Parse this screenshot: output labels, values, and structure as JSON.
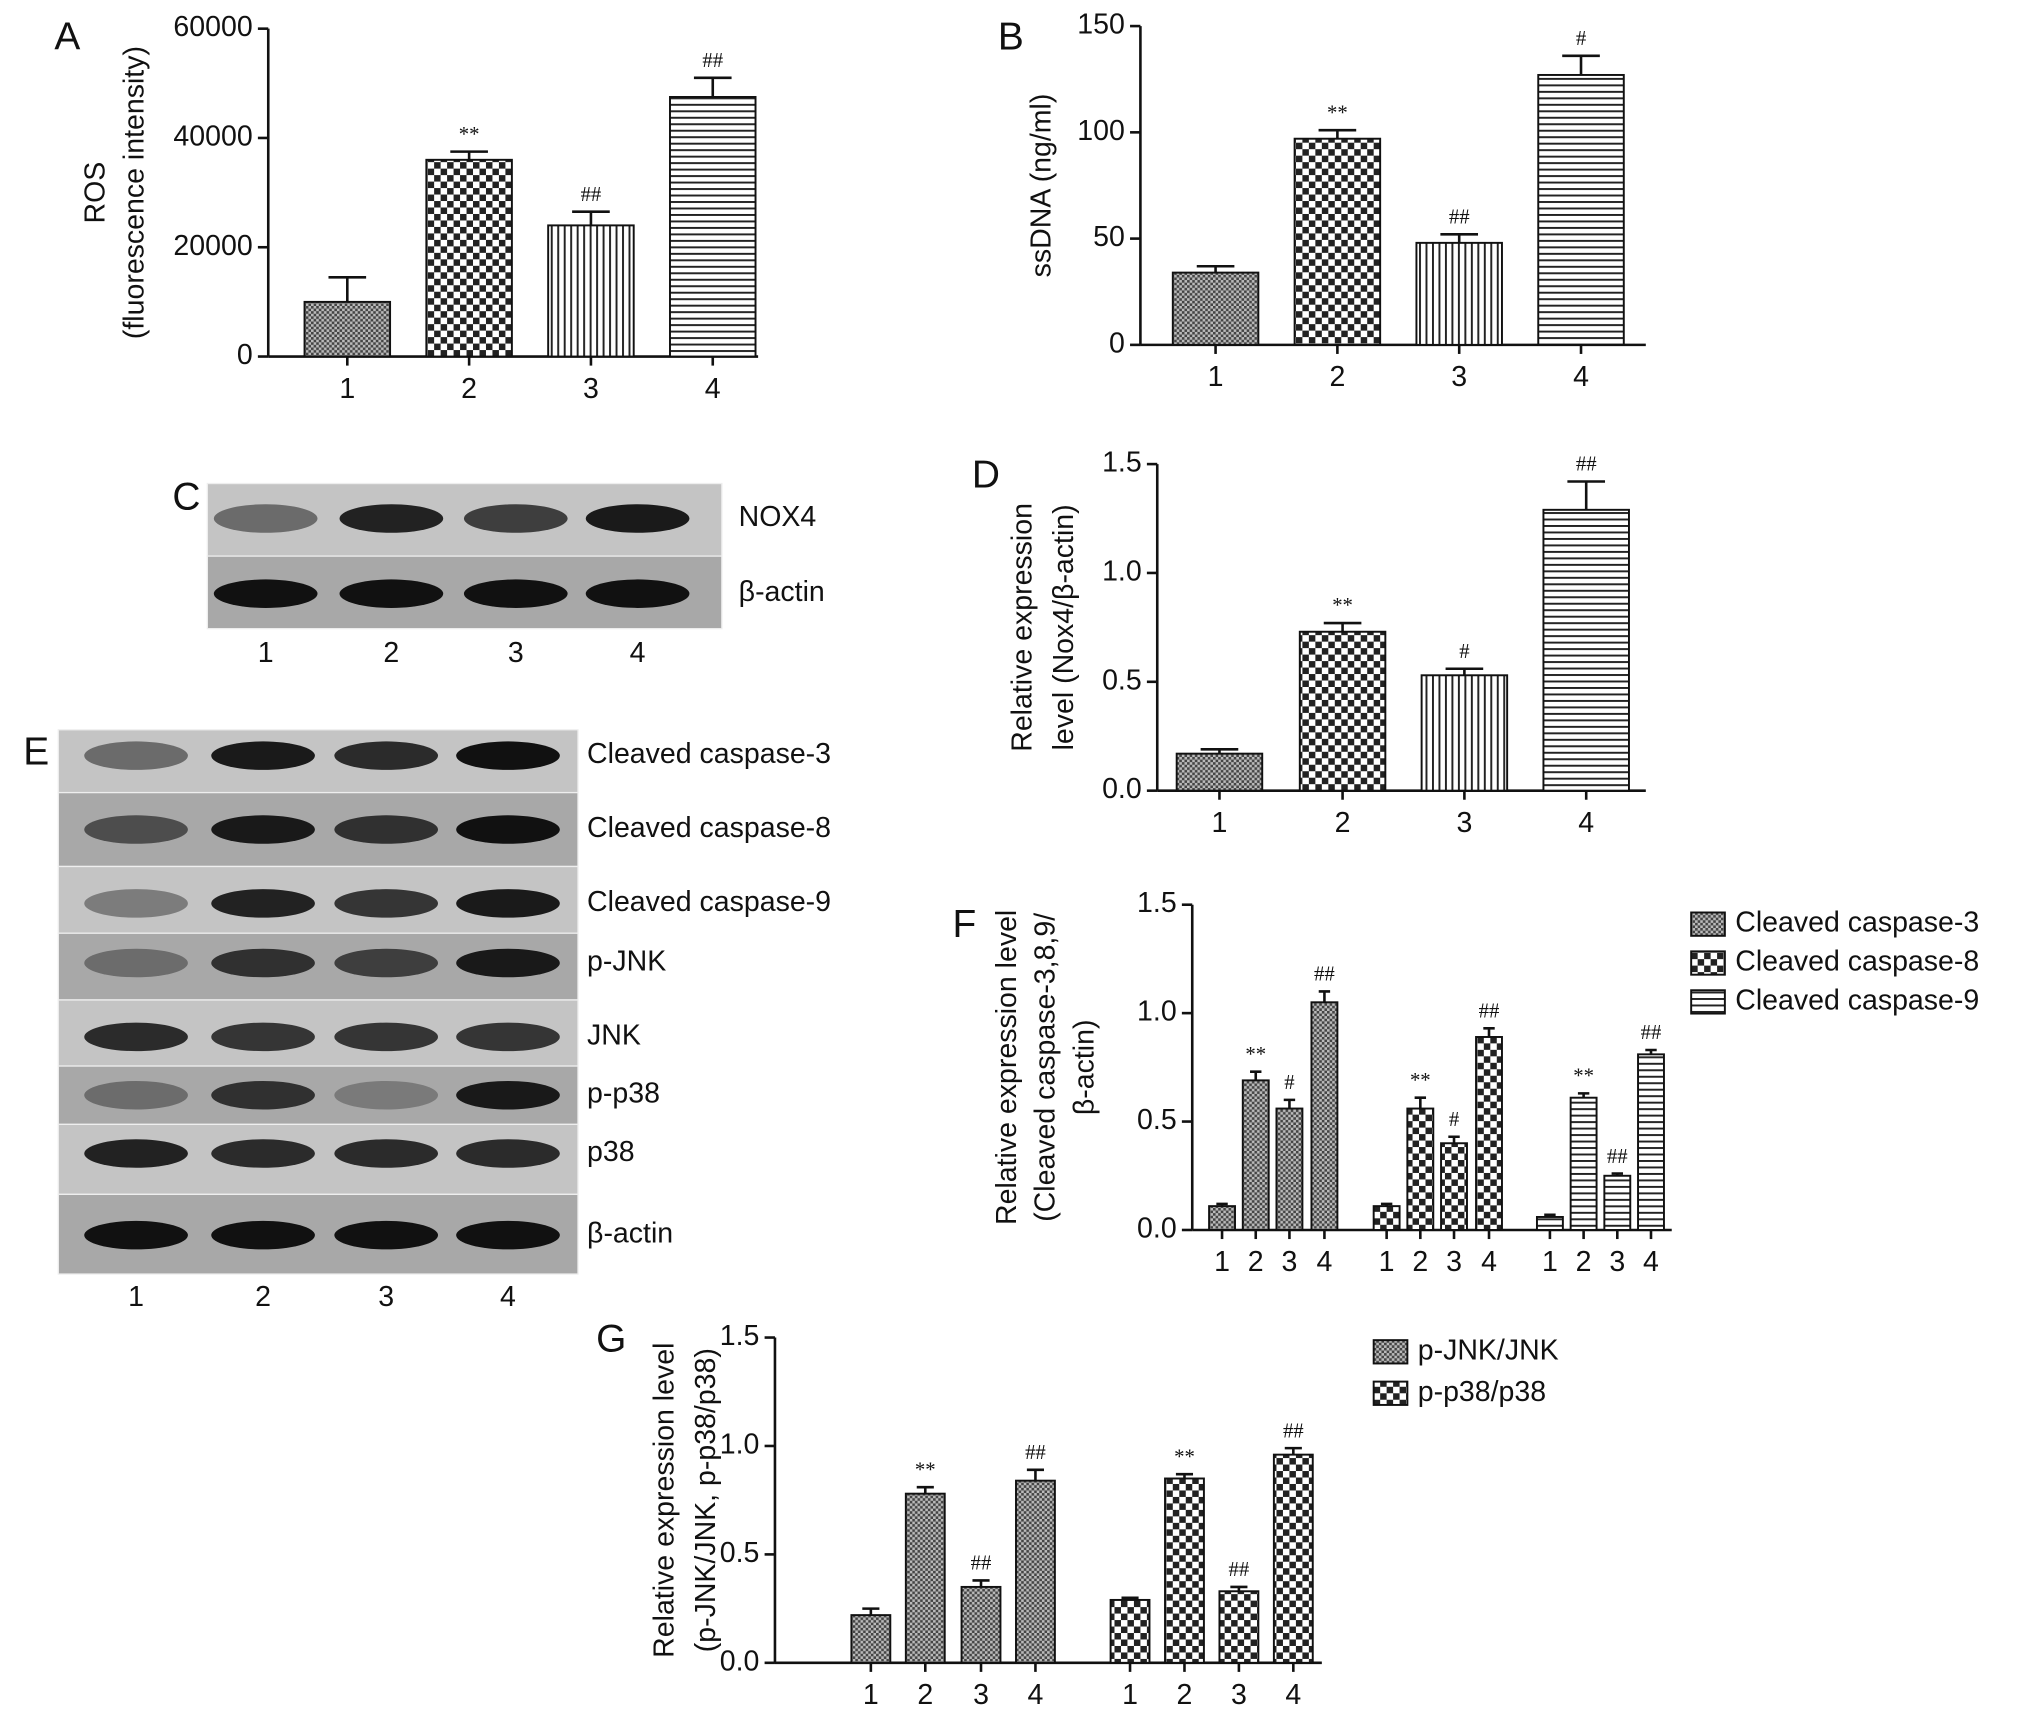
{
  "chart_data": [
    {
      "type": "bar",
      "panel": "A",
      "ylabel": [
        "ROS",
        "(fluorescence intensity)"
      ],
      "categories": [
        "1",
        "2",
        "3",
        "4"
      ],
      "values": [
        10000,
        36000,
        24000,
        47500
      ],
      "errors": [
        4500,
        1500,
        2500,
        3500
      ],
      "annotations": [
        null,
        "**",
        "##",
        "##"
      ],
      "patterns": [
        "dense",
        "checker",
        "vertical",
        "horizontal"
      ],
      "ylim": [
        0,
        60000
      ],
      "yticks": [
        0,
        20000,
        40000,
        60000
      ]
    },
    {
      "type": "bar",
      "panel": "B",
      "ylabel": [
        "ssDNA (ng/ml)"
      ],
      "categories": [
        "1",
        "2",
        "3",
        "4"
      ],
      "values": [
        34,
        97,
        48,
        127
      ],
      "errors": [
        3,
        4,
        4,
        9
      ],
      "annotations": [
        null,
        "**",
        "##",
        "#"
      ],
      "patterns": [
        "dense",
        "checker",
        "vertical",
        "horizontal"
      ],
      "ylim": [
        0,
        150
      ],
      "yticks": [
        0,
        50,
        100,
        150
      ]
    },
    {
      "type": "bar",
      "panel": "D",
      "ylabel": [
        "Relative expression",
        "level (Nox4/β-actin)"
      ],
      "categories": [
        "1",
        "2",
        "3",
        "4"
      ],
      "values": [
        0.17,
        0.73,
        0.53,
        1.29
      ],
      "errors": [
        0.02,
        0.04,
        0.03,
        0.13
      ],
      "annotations": [
        null,
        "**",
        "#",
        "##"
      ],
      "patterns": [
        "dense",
        "checker",
        "vertical",
        "horizontal"
      ],
      "ylim": [
        0,
        1.5
      ],
      "yticks": [
        {
          "value": 0,
          "label": "0.0"
        },
        0.5,
        {
          "value": 1,
          "label": "1.0"
        },
        1.5
      ]
    },
    {
      "type": "bar",
      "panel": "F",
      "ylabel": [
        "Relative expression level",
        "(Cleaved caspase-3,8,9/",
        "β-actin)"
      ],
      "categories": [
        "1",
        "2",
        "3",
        "4"
      ],
      "series": [
        {
          "name": "Cleaved caspase-3",
          "pattern": "dense",
          "values": [
            0.11,
            0.69,
            0.56,
            1.05
          ],
          "errors": [
            0.01,
            0.04,
            0.04,
            0.05
          ],
          "annotations": [
            null,
            "**",
            "#",
            "##"
          ]
        },
        {
          "name": "Cleaved caspase-8",
          "pattern": "checker",
          "values": [
            0.11,
            0.56,
            0.4,
            0.89
          ],
          "errors": [
            0.01,
            0.05,
            0.03,
            0.04
          ],
          "annotations": [
            null,
            "**",
            "#",
            "##"
          ]
        },
        {
          "name": "Cleaved caspase-9",
          "pattern": "horizontal",
          "values": [
            0.06,
            0.61,
            0.25,
            0.81
          ],
          "errors": [
            0.01,
            0.02,
            0.01,
            0.02
          ],
          "annotations": [
            null,
            "**",
            "##",
            "##"
          ]
        }
      ],
      "ylim": [
        0,
        1.5
      ],
      "yticks": [
        {
          "value": 0,
          "label": "0.0"
        },
        0.5,
        {
          "value": 1,
          "label": "1.0"
        },
        1.5
      ]
    },
    {
      "type": "bar",
      "panel": "G",
      "ylabel": [
        "Relative expression level",
        "(p-JNK/JNK, p-p38/p38)"
      ],
      "categories": [
        "1",
        "2",
        "3",
        "4"
      ],
      "series": [
        {
          "name": "p-JNK/JNK",
          "pattern": "dense",
          "values": [
            0.22,
            0.78,
            0.35,
            0.84
          ],
          "errors": [
            0.03,
            0.03,
            0.03,
            0.05
          ],
          "annotations": [
            null,
            "**",
            "##",
            "##"
          ]
        },
        {
          "name": "p-p38/p38",
          "pattern": "checker",
          "values": [
            0.29,
            0.85,
            0.33,
            0.96
          ],
          "errors": [
            0.01,
            0.02,
            0.02,
            0.03
          ],
          "annotations": [
            null,
            "**",
            "##",
            "##"
          ]
        }
      ],
      "ylim": [
        0,
        1.5
      ],
      "yticks": [
        {
          "value": 0,
          "label": "0.0"
        },
        0.5,
        {
          "value": 1,
          "label": "1.0"
        },
        1.5
      ]
    }
  ],
  "blots": [
    {
      "panel": "C",
      "bands": [
        "NOX4",
        "β-actin"
      ],
      "lanes": [
        "1",
        "2",
        "3",
        "4"
      ]
    },
    {
      "panel": "E",
      "bands": [
        "Cleaved caspase-3",
        "Cleaved caspase-8",
        "Cleaved caspase-9",
        "p-JNK",
        "JNK",
        "p-p38",
        "p38",
        "β-actin"
      ],
      "lanes": [
        "1",
        "2",
        "3",
        "4"
      ]
    }
  ]
}
